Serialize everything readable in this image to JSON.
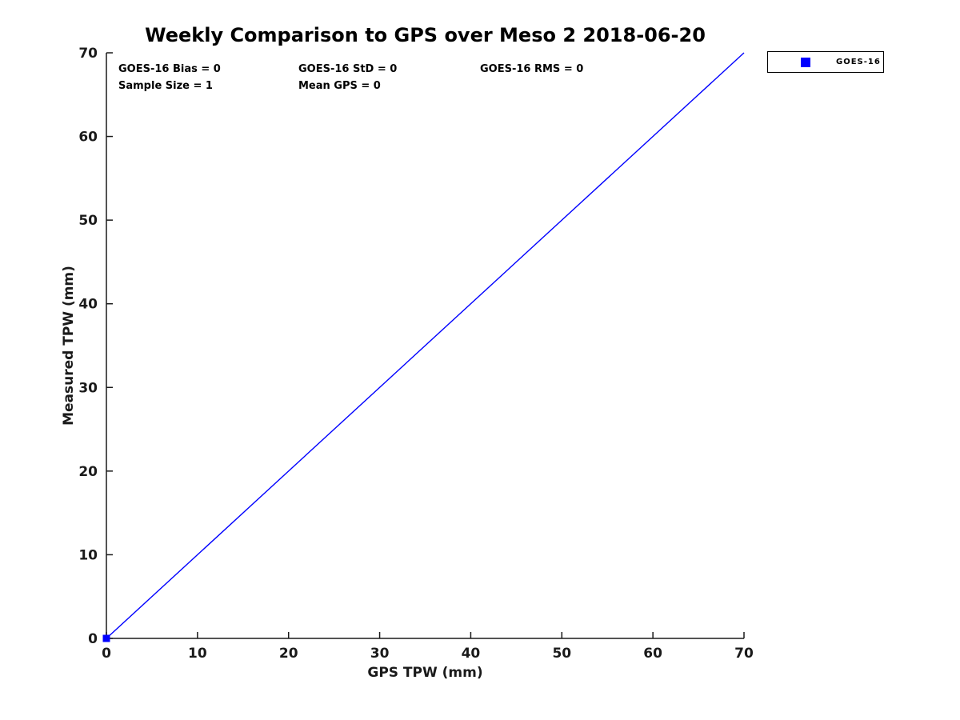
{
  "chart_data": {
    "type": "scatter",
    "title": "Weekly Comparison to GPS over Meso 2 2018-06-20",
    "xlabel": "GPS TPW (mm)",
    "ylabel": "Measured TPW (mm)",
    "xlim": [
      0,
      70
    ],
    "ylim": [
      0,
      70
    ],
    "xticks": [
      0,
      10,
      20,
      30,
      40,
      50,
      60,
      70
    ],
    "yticks": [
      0,
      10,
      20,
      30,
      40,
      50,
      60,
      70
    ],
    "grid": false,
    "legend": {
      "position": "top-right-outside",
      "entries": [
        {
          "label": "GOES-16",
          "marker": "square",
          "color": "#0000ff"
        }
      ]
    },
    "series": [
      {
        "name": "one-to-one-line",
        "type": "line",
        "color": "#0000ff",
        "points": [
          [
            0,
            0
          ],
          [
            70,
            70
          ]
        ]
      },
      {
        "name": "GOES-16",
        "type": "scatter",
        "marker": "square",
        "color": "#0000ff",
        "points": [
          [
            0,
            0
          ]
        ]
      }
    ],
    "stats": {
      "bias": 0,
      "std": 0,
      "rms": 0,
      "sample_size": 1,
      "mean_gps": 0
    },
    "annotations": {
      "bias": "GOES-16 Bias = 0",
      "std": "GOES-16 StD = 0",
      "rms": "GOES-16 RMS = 0",
      "sample_size": "Sample Size = 1",
      "mean_gps": "Mean GPS = 0"
    }
  },
  "colors": {
    "accent": "#0000ff",
    "axis": "#1a1a1a",
    "text": "#000000",
    "background": "#ffffff"
  }
}
